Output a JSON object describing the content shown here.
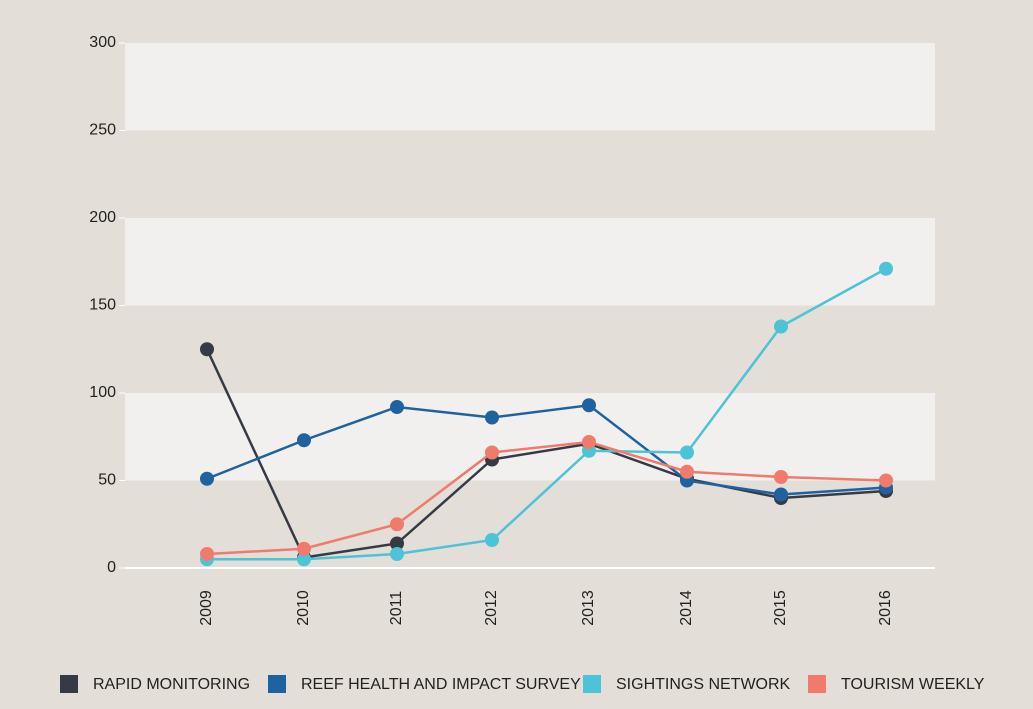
{
  "chart_data": {
    "type": "line",
    "categories": [
      "2009",
      "2010",
      "2011",
      "2012",
      "2013",
      "2014",
      "2015",
      "2016"
    ],
    "series": [
      {
        "name": "RAPID MONITORING",
        "color": "#343a46",
        "values": [
          125,
          6,
          14,
          62,
          71,
          51,
          40,
          44
        ]
      },
      {
        "name": "REEF HEALTH AND IMPACT SURVEY",
        "color": "#1f62a0",
        "values": [
          51,
          73,
          92,
          86,
          93,
          50,
          42,
          46
        ]
      },
      {
        "name": "SIGHTINGS NETWORK",
        "color": "#4cc3d6",
        "values": [
          5,
          5,
          8,
          16,
          67,
          66,
          138,
          171
        ]
      },
      {
        "name": "TOURISM WEEKLY",
        "color": "#f07b6d",
        "values": [
          8,
          11,
          25,
          66,
          72,
          55,
          52,
          50
        ]
      }
    ],
    "ylim": [
      0,
      300
    ],
    "yticks": [
      0,
      50,
      100,
      150,
      200,
      250,
      300
    ],
    "grid": true,
    "legend": "bottom"
  }
}
